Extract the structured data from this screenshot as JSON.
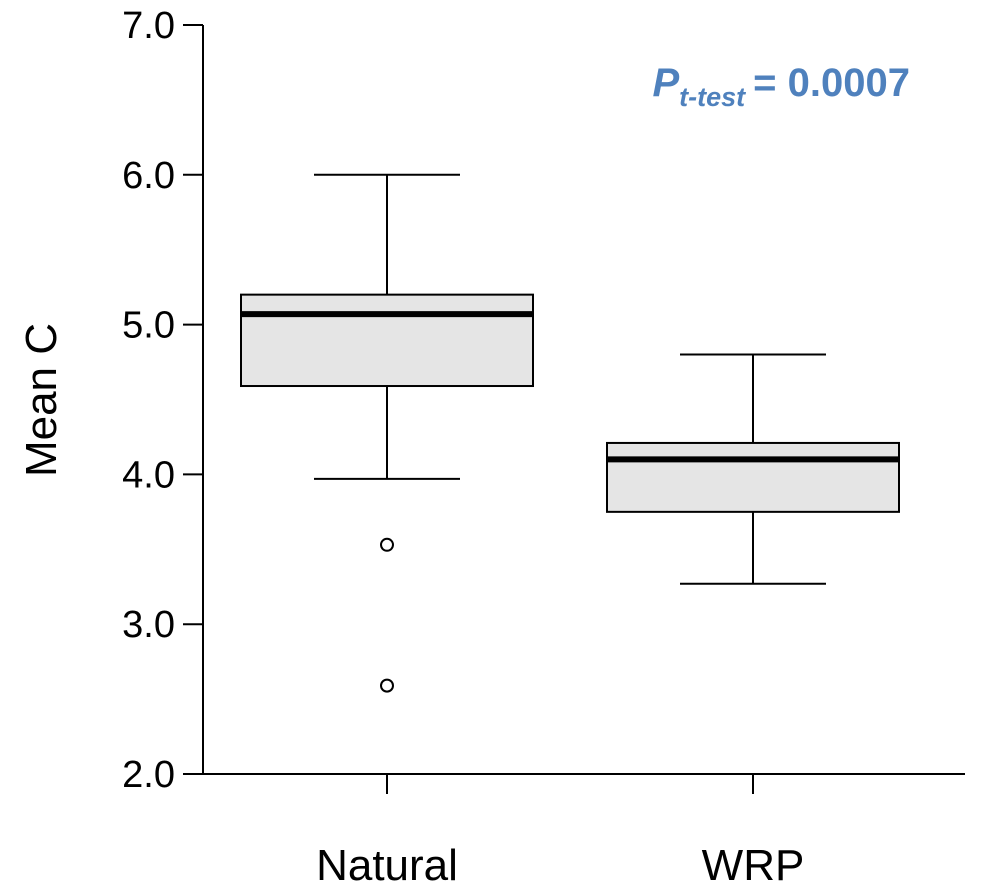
{
  "chart_data": {
    "type": "boxplot",
    "ylabel": "Mean C",
    "ylim": [
      2.0,
      7.0
    ],
    "yticks": [
      "2.0",
      "3.0",
      "4.0",
      "5.0",
      "6.0",
      "7.0"
    ],
    "categories": [
      "Natural",
      "WRP"
    ],
    "boxes": [
      {
        "name": "Natural",
        "whisker_low": 3.97,
        "q1": 4.59,
        "median": 5.07,
        "q3": 5.2,
        "whisker_high": 6.0,
        "outliers": [
          3.53,
          2.59
        ]
      },
      {
        "name": "WRP",
        "whisker_low": 3.27,
        "q1": 3.75,
        "median": 4.1,
        "q3": 4.21,
        "whisker_high": 4.8,
        "outliers": []
      }
    ],
    "annotation": {
      "p": "P",
      "subscript": "t-test",
      "value": "= 0.0007",
      "color": "#4f81bd"
    }
  }
}
